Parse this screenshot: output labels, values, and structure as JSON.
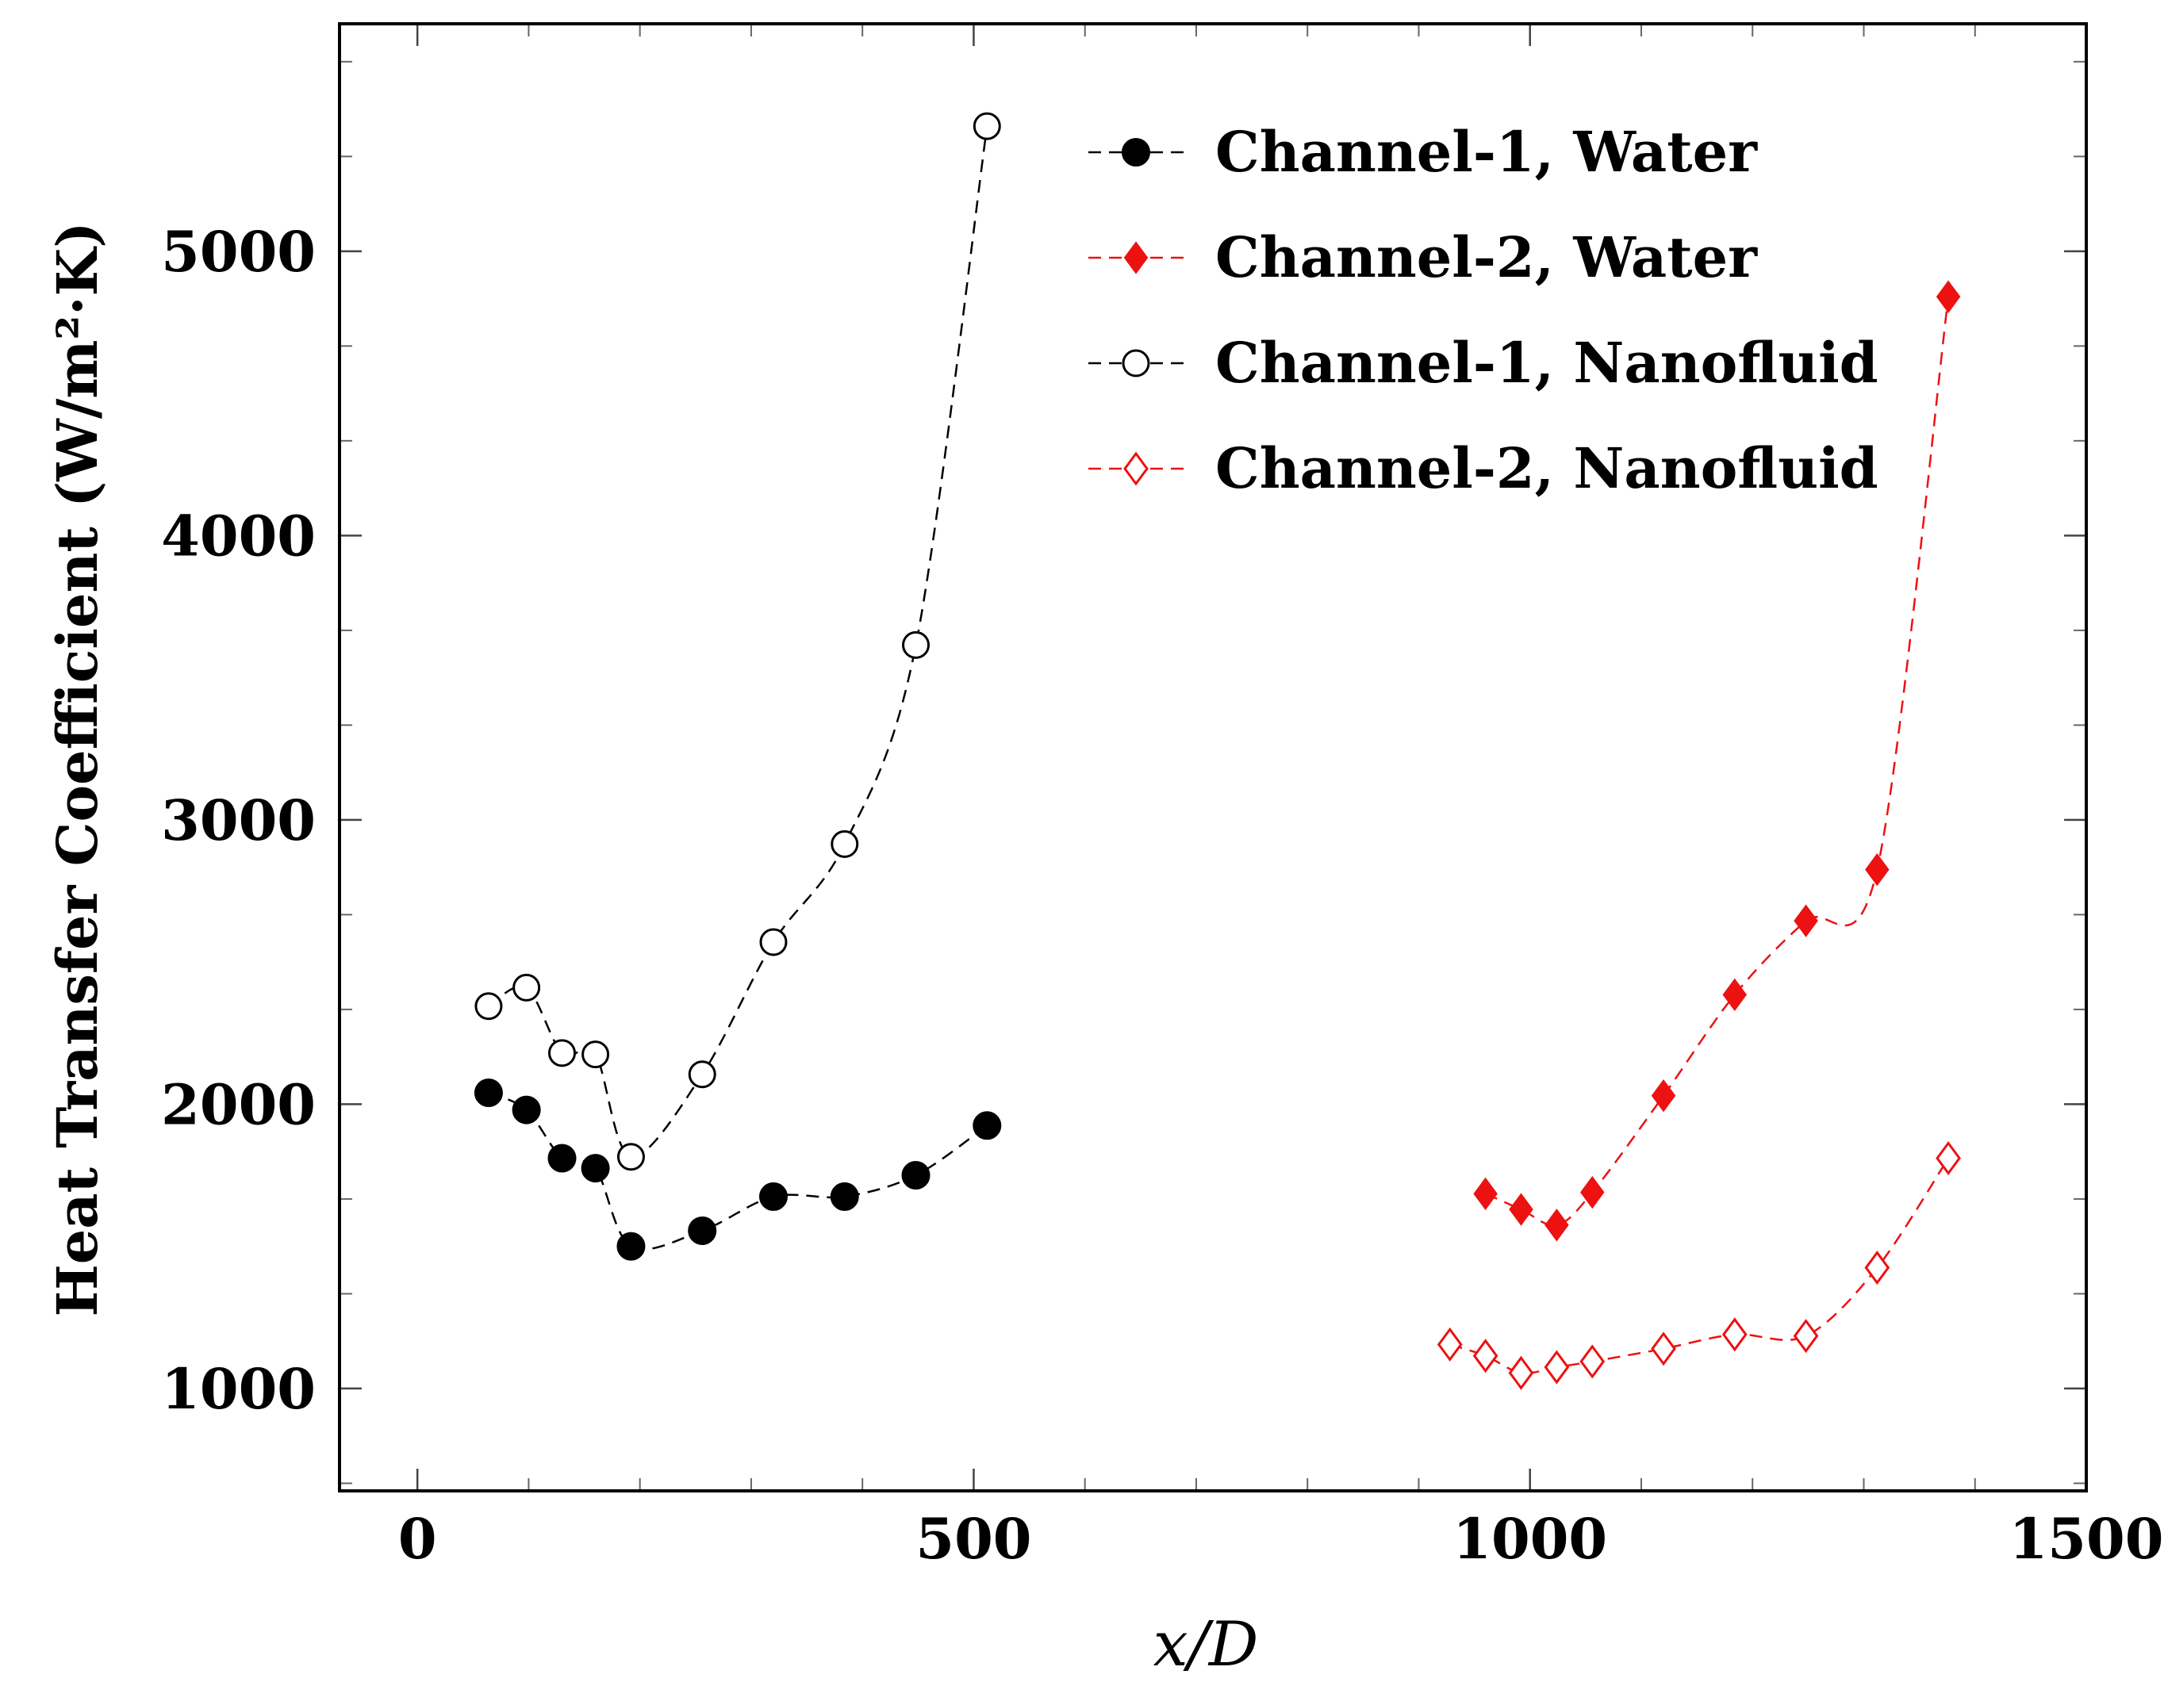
{
  "chart_data": {
    "type": "line",
    "title": "",
    "xlabel": "x/D",
    "ylabel": "Heat Transfer Coefficient (W/m²·K)",
    "xlim": [
      -70,
      1500
    ],
    "ylim": [
      640,
      5800
    ],
    "xticks": [
      0,
      500,
      1000,
      1500
    ],
    "yticks": [
      1000,
      2000,
      3000,
      4000,
      5000
    ],
    "grid": false,
    "legend_position": "top-right",
    "series": [
      {
        "name": "Channel-1, Water",
        "color": "#000000",
        "marker": "filled-circle",
        "x": [
          64,
          98,
          130,
          160,
          192,
          256,
          320,
          384,
          448,
          512
        ],
        "y": [
          2040,
          1980,
          1810,
          1775,
          1500,
          1555,
          1675,
          1675,
          1750,
          1925
        ]
      },
      {
        "name": "Channel-2, Water",
        "color": "#ee1111",
        "marker": "filled-diamond",
        "x": [
          960,
          992,
          1024,
          1056,
          1120,
          1184,
          1248,
          1312,
          1376
        ],
        "y": [
          1685,
          1630,
          1575,
          1690,
          2030,
          2385,
          2645,
          2825,
          4840
        ]
      },
      {
        "name": "Channel-1, Nanofluid",
        "color": "#000000",
        "marker": "open-circle",
        "x": [
          64,
          98,
          130,
          160,
          192,
          256,
          320,
          384,
          448,
          512
        ],
        "y": [
          2345,
          2410,
          2180,
          2175,
          1815,
          2105,
          2570,
          2915,
          3615,
          5440
        ]
      },
      {
        "name": "Channel-2, Nanofluid",
        "color": "#ee1111",
        "marker": "open-diamond",
        "x": [
          928,
          960,
          992,
          1024,
          1056,
          1120,
          1184,
          1248,
          1312,
          1376
        ],
        "y": [
          1155,
          1115,
          1055,
          1075,
          1095,
          1140,
          1190,
          1185,
          1425,
          1810
        ]
      }
    ]
  }
}
